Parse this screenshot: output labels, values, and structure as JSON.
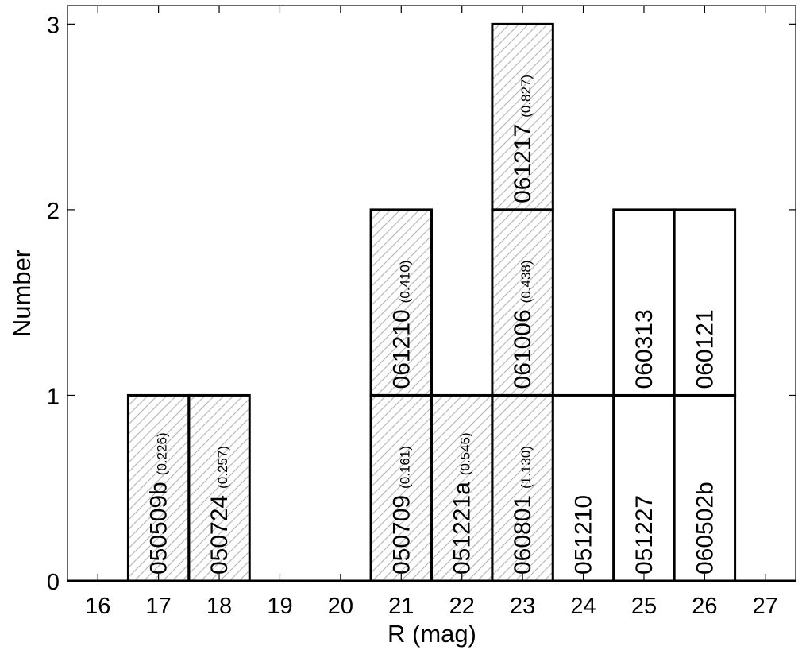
{
  "colors": {
    "background": "#ffffff",
    "axis": "#000000",
    "bar_edge": "#000000",
    "hatch": "#b8b8b8"
  },
  "chart_data": {
    "type": "bar",
    "title": "",
    "xlabel": "R  (mag)",
    "ylabel": "Number",
    "xlim": [
      15.5,
      27.5
    ],
    "ylim": [
      0,
      3.1
    ],
    "x_ticks": [
      16,
      17,
      18,
      19,
      20,
      21,
      22,
      23,
      24,
      25,
      26,
      27
    ],
    "y_ticks": [
      0,
      1,
      2,
      3
    ],
    "grid": false,
    "legend": "none",
    "series": [
      {
        "values": [
          0,
          1,
          1,
          0,
          0,
          2,
          1,
          3,
          1,
          2,
          2,
          0
        ]
      }
    ],
    "categories": [
      16,
      17,
      18,
      19,
      20,
      21,
      22,
      23,
      24,
      25,
      26,
      27
    ],
    "entries": [
      {
        "bin": 17,
        "level": 0,
        "name": "050509b",
        "z": "(0.226)",
        "hatched": true
      },
      {
        "bin": 18,
        "level": 0,
        "name": "050724",
        "z": "(0.257)",
        "hatched": true
      },
      {
        "bin": 21,
        "level": 0,
        "name": "050709",
        "z": "(0.161)",
        "hatched": true
      },
      {
        "bin": 21,
        "level": 1,
        "name": "061210",
        "z": "(0.410)",
        "hatched": true
      },
      {
        "bin": 22,
        "level": 0,
        "name": "051221a",
        "z": "(0.546)",
        "hatched": true
      },
      {
        "bin": 23,
        "level": 0,
        "name": "060801",
        "z": "(1.130)",
        "hatched": true
      },
      {
        "bin": 23,
        "level": 1,
        "name": "061006",
        "z": "(0.438)",
        "hatched": true
      },
      {
        "bin": 23,
        "level": 2,
        "name": "061217",
        "z": "(0.827)",
        "hatched": true
      },
      {
        "bin": 24,
        "level": 0,
        "name": "051210",
        "z": "",
        "hatched": false
      },
      {
        "bin": 25,
        "level": 0,
        "name": "051227",
        "z": "",
        "hatched": false
      },
      {
        "bin": 25,
        "level": 1,
        "name": "060313",
        "z": "",
        "hatched": false
      },
      {
        "bin": 26,
        "level": 0,
        "name": "060502b",
        "z": "",
        "hatched": false
      },
      {
        "bin": 26,
        "level": 1,
        "name": "060121",
        "z": "",
        "hatched": false
      }
    ]
  }
}
